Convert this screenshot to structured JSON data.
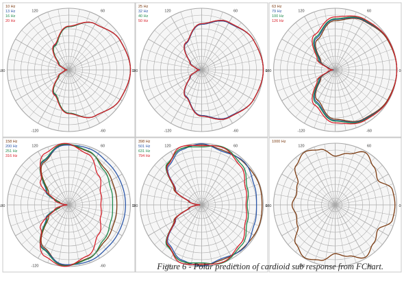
{
  "caption": "Figure 6 - Polar prediction of cardioid sub response from FChart.",
  "colors": {
    "background": "#ffffff",
    "plot_background": "#f6f6f6",
    "panel_border": "#c8c8c8",
    "grid": "#a8a8a8",
    "axis_label": "#333333"
  },
  "chart_data": [
    {
      "type": "polar",
      "angle_labels": [
        "120",
        "60",
        "180",
        "0",
        "-120",
        "-60"
      ],
      "grid": true,
      "legend": "top-left",
      "series": [
        {
          "name": "10 Hz",
          "color": "#7b3a10",
          "pattern": [
            [
              0,
              1
            ],
            [
              30,
              0.96
            ],
            [
              60,
              0.86
            ],
            [
              90,
              0.7
            ],
            [
              120,
              0.45
            ],
            [
              150,
              0.18
            ],
            [
              165,
              0.07
            ],
            [
              180,
              0.03
            ]
          ]
        },
        {
          "name": "13 Hz",
          "color": "#2a56a8",
          "pattern": [
            [
              0,
              1
            ],
            [
              30,
              0.96
            ],
            [
              60,
              0.86
            ],
            [
              90,
              0.7
            ],
            [
              120,
              0.46
            ],
            [
              150,
              0.19
            ],
            [
              165,
              0.08
            ],
            [
              180,
              0.04
            ]
          ]
        },
        {
          "name": "16 Hz",
          "color": "#1f8a4c",
          "pattern": [
            [
              0,
              1
            ],
            [
              30,
              0.96
            ],
            [
              60,
              0.86
            ],
            [
              90,
              0.7
            ],
            [
              120,
              0.45
            ],
            [
              150,
              0.18
            ],
            [
              165,
              0.08
            ],
            [
              180,
              0.05
            ]
          ]
        },
        {
          "name": "20 Hz",
          "color": "#d8202a",
          "pattern": [
            [
              0,
              1
            ],
            [
              30,
              0.96
            ],
            [
              60,
              0.86
            ],
            [
              90,
              0.71
            ],
            [
              120,
              0.47
            ],
            [
              150,
              0.2
            ],
            [
              165,
              0.08
            ],
            [
              180,
              0.04
            ]
          ]
        }
      ]
    },
    {
      "type": "polar",
      "angle_labels": [
        "120",
        "60",
        "180",
        "0",
        "-120",
        "-60"
      ],
      "grid": true,
      "legend": "top-left",
      "series": [
        {
          "name": "25 Hz",
          "color": "#7b3a10",
          "pattern": [
            [
              0,
              1
            ],
            [
              30,
              0.97
            ],
            [
              60,
              0.88
            ],
            [
              90,
              0.74
            ],
            [
              120,
              0.5
            ],
            [
              150,
              0.21
            ],
            [
              165,
              0.08
            ],
            [
              180,
              0.03
            ]
          ]
        },
        {
          "name": "32 Hz",
          "color": "#2a56a8",
          "pattern": [
            [
              0,
              1
            ],
            [
              30,
              0.97
            ],
            [
              60,
              0.88
            ],
            [
              90,
              0.74
            ],
            [
              120,
              0.5
            ],
            [
              150,
              0.21
            ],
            [
              165,
              0.08
            ],
            [
              180,
              0.03
            ]
          ]
        },
        {
          "name": "40 Hz",
          "color": "#1f8a4c",
          "pattern": [
            [
              0,
              1
            ],
            [
              30,
              0.97
            ],
            [
              60,
              0.89
            ],
            [
              90,
              0.75
            ],
            [
              120,
              0.51
            ],
            [
              150,
              0.22
            ],
            [
              165,
              0.09
            ],
            [
              180,
              0.04
            ]
          ]
        },
        {
          "name": "50 Hz",
          "color": "#d8202a",
          "pattern": [
            [
              0,
              1
            ],
            [
              30,
              0.97
            ],
            [
              60,
              0.89
            ],
            [
              90,
              0.75
            ],
            [
              120,
              0.51
            ],
            [
              150,
              0.22
            ],
            [
              165,
              0.09
            ],
            [
              180,
              0.04
            ]
          ]
        }
      ]
    },
    {
      "type": "polar",
      "angle_labels": [
        "120",
        "60",
        "180",
        "0",
        "-120",
        "-60"
      ],
      "grid": true,
      "legend": "top-left",
      "series": [
        {
          "name": "63 Hz",
          "color": "#7b3a10",
          "pattern": [
            [
              0,
              1
            ],
            [
              30,
              0.98
            ],
            [
              60,
              0.92
            ],
            [
              90,
              0.8
            ],
            [
              120,
              0.57
            ],
            [
              150,
              0.27
            ],
            [
              165,
              0.1
            ],
            [
              180,
              0.03
            ]
          ]
        },
        {
          "name": "79 Hz",
          "color": "#2a56a8",
          "pattern": [
            [
              0,
              1
            ],
            [
              30,
              0.99
            ],
            [
              60,
              0.93
            ],
            [
              90,
              0.82
            ],
            [
              120,
              0.6
            ],
            [
              150,
              0.29
            ],
            [
              165,
              0.11
            ],
            [
              180,
              0.03
            ]
          ]
        },
        {
          "name": "100 Hz",
          "color": "#1f8a4c",
          "pattern": [
            [
              0,
              1
            ],
            [
              30,
              0.99
            ],
            [
              60,
              0.94
            ],
            [
              90,
              0.83
            ],
            [
              120,
              0.62
            ],
            [
              150,
              0.31
            ],
            [
              165,
              0.12
            ],
            [
              180,
              0.04
            ]
          ]
        },
        {
          "name": "126 Hz",
          "color": "#d8202a",
          "pattern": [
            [
              0,
              1
            ],
            [
              30,
              0.99
            ],
            [
              60,
              0.95
            ],
            [
              90,
              0.86
            ],
            [
              120,
              0.66
            ],
            [
              150,
              0.34
            ],
            [
              165,
              0.13
            ],
            [
              180,
              0.04
            ]
          ]
        }
      ]
    },
    {
      "type": "polar",
      "angle_labels": [
        "120",
        "60",
        "180",
        "0",
        "-120",
        "-60"
      ],
      "grid": true,
      "legend": "top-left",
      "series": [
        {
          "name": "158 Hz",
          "color": "#7b3a10",
          "pattern": [
            [
              0,
              0.78
            ],
            [
              20,
              0.79
            ],
            [
              45,
              0.83
            ],
            [
              70,
              0.92
            ],
            [
              95,
              0.98
            ],
            [
              120,
              0.8
            ],
            [
              150,
              0.38
            ],
            [
              165,
              0.15
            ],
            [
              180,
              0.03
            ]
          ]
        },
        {
          "name": "200 Hz",
          "color": "#2a56a8",
          "pattern": [
            [
              0,
              0.92
            ],
            [
              20,
              0.92
            ],
            [
              45,
              0.93
            ],
            [
              70,
              0.97
            ],
            [
              95,
              0.97
            ],
            [
              120,
              0.82
            ],
            [
              150,
              0.43
            ],
            [
              165,
              0.18
            ],
            [
              180,
              0.03
            ]
          ]
        },
        {
          "name": "251 Hz",
          "color": "#1f8a4c",
          "pattern": [
            [
              0,
              0.71
            ],
            [
              20,
              0.73
            ],
            [
              45,
              0.8
            ],
            [
              70,
              0.93
            ],
            [
              95,
              0.99
            ],
            [
              120,
              0.83
            ],
            [
              150,
              0.41
            ],
            [
              165,
              0.17
            ],
            [
              180,
              0.03
            ]
          ]
        },
        {
          "name": "316 Hz",
          "color": "#d8202a",
          "pattern": [
            [
              0,
              0.52
            ],
            [
              20,
              0.55
            ],
            [
              45,
              0.68
            ],
            [
              70,
              0.88
            ],
            [
              95,
              1
            ],
            [
              115,
              0.92
            ],
            [
              140,
              0.6
            ],
            [
              160,
              0.25
            ],
            [
              180,
              0.03
            ]
          ]
        }
      ]
    },
    {
      "type": "polar",
      "angle_labels": [
        "120",
        "60",
        "180",
        "0",
        "-120",
        "-60"
      ],
      "grid": true,
      "legend": "top-left",
      "series": [
        {
          "name": "398 Hz",
          "color": "#7b3a10",
          "pattern": [
            [
              0,
              0.98
            ],
            [
              20,
              0.99
            ],
            [
              45,
              0.97
            ],
            [
              70,
              0.95
            ],
            [
              90,
              0.98
            ],
            [
              110,
              0.97
            ],
            [
              130,
              0.86
            ],
            [
              150,
              0.52
            ],
            [
              165,
              0.22
            ],
            [
              180,
              0.03
            ]
          ]
        },
        {
          "name": "501 Hz",
          "color": "#2a56a8",
          "pattern": [
            [
              0,
              0.89
            ],
            [
              20,
              0.91
            ],
            [
              45,
              0.98
            ],
            [
              70,
              0.93
            ],
            [
              90,
              0.99
            ],
            [
              110,
              0.95
            ],
            [
              130,
              0.83
            ],
            [
              150,
              0.49
            ],
            [
              165,
              0.2
            ],
            [
              180,
              0.03
            ]
          ]
        },
        {
          "name": "631 Hz",
          "color": "#1f8a4c",
          "pattern": [
            [
              0,
              0.74
            ],
            [
              20,
              0.79
            ],
            [
              45,
              0.92
            ],
            [
              70,
              1
            ],
            [
              90,
              0.94
            ],
            [
              110,
              0.97
            ],
            [
              130,
              0.87
            ],
            [
              150,
              0.5
            ],
            [
              165,
              0.21
            ],
            [
              180,
              0.03
            ]
          ]
        },
        {
          "name": "794 Hz",
          "color": "#d8202a",
          "pattern": [
            [
              0,
              0.72
            ],
            [
              20,
              0.76
            ],
            [
              45,
              0.89
            ],
            [
              70,
              0.99
            ],
            [
              90,
              0.96
            ],
            [
              110,
              1
            ],
            [
              130,
              0.85
            ],
            [
              150,
              0.5
            ],
            [
              165,
              0.21
            ],
            [
              180,
              0.03
            ]
          ]
        }
      ]
    },
    {
      "type": "polar",
      "angle_labels": [
        "120",
        "60",
        "180",
        "0",
        "-120",
        "-60"
      ],
      "grid": true,
      "legend": "top-left",
      "series": [
        {
          "name": "1000 Hz",
          "color": "#7b3a10",
          "pattern": [
            [
              0,
              0.97
            ],
            [
              15,
              0.96
            ],
            [
              30,
              0.8
            ],
            [
              45,
              0.88
            ],
            [
              60,
              0.98
            ],
            [
              75,
              0.86
            ],
            [
              90,
              0.79
            ],
            [
              105,
              0.93
            ],
            [
              120,
              0.99
            ],
            [
              135,
              0.9
            ],
            [
              150,
              0.7
            ],
            [
              165,
              0.65
            ],
            [
              180,
              0.7
            ]
          ]
        }
      ]
    }
  ]
}
